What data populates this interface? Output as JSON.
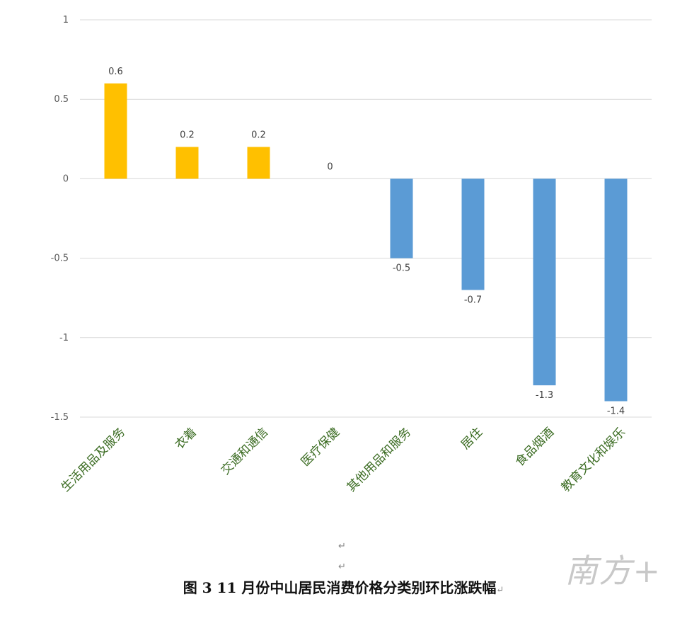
{
  "chart_data": {
    "type": "bar",
    "categories": [
      "生活用品及服务",
      "衣着",
      "交通和通信",
      "医疗保健",
      "其他用品和服务",
      "居住",
      "食品烟酒",
      "教育文化和娱乐"
    ],
    "values": [
      0.6,
      0.2,
      0.2,
      0,
      -0.5,
      -0.7,
      -1.3,
      -1.4
    ],
    "value_labels": [
      "0.6",
      "0.2",
      "0.2",
      "0",
      "-0.5",
      "-0.7",
      "-1.3",
      "-1.4"
    ],
    "ylim": [
      -1.5,
      1
    ],
    "yticks": [
      1,
      0.5,
      0,
      -0.5,
      -1,
      -1.5
    ],
    "ytick_labels": [
      "1",
      "0.5",
      "0",
      "-0.5",
      "-1",
      "-1.5"
    ],
    "grid": true,
    "colors": {
      "positive": "#ffc000",
      "negative": "#5b9bd5",
      "grid": "#d9d9d9",
      "category_text": "#3a6b21"
    },
    "title": "图 3  11 月份中山居民消费价格分类别环比涨跌幅"
  },
  "caption": "图 3  11 月份中山居民消费价格分类别环比涨跌幅",
  "paragraph_mark": "↵",
  "watermark": "南方+"
}
